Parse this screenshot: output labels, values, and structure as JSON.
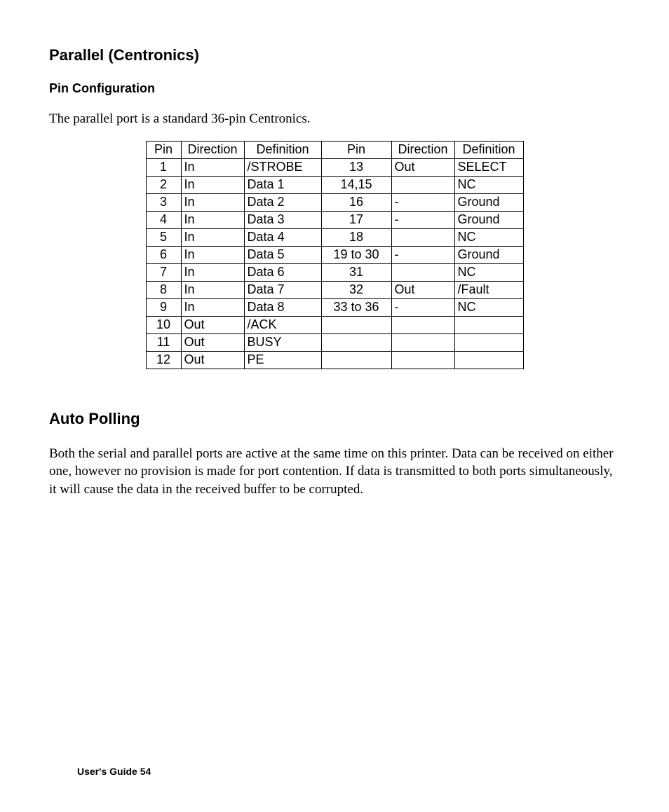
{
  "section1": {
    "heading": "Parallel (Centronics)",
    "subheading": "Pin Configuration",
    "intro": "The parallel port is a standard 36-pin Centronics."
  },
  "table": {
    "columns": [
      "Pin",
      "Direction",
      "Definition",
      "Pin",
      "Direction",
      "Definition"
    ],
    "col_classes": [
      "col-pin",
      "col-dir",
      "col-def",
      "col-pin2",
      "col-dir2",
      "col-def2"
    ],
    "rows": [
      [
        "1",
        "In",
        "/STROBE",
        "13",
        "Out",
        "SELECT"
      ],
      [
        "2",
        "In",
        "Data 1",
        "14,15",
        "",
        "NC"
      ],
      [
        "3",
        "In",
        "Data 2",
        "16",
        "-",
        "Ground"
      ],
      [
        "4",
        "In",
        "Data 3",
        "17",
        "-",
        "Ground"
      ],
      [
        "5",
        "In",
        "Data 4",
        "18",
        "",
        "NC"
      ],
      [
        "6",
        "In",
        "Data 5",
        "19 to 30",
        "-",
        "Ground"
      ],
      [
        "7",
        "In",
        "Data 6",
        "31",
        "",
        "NC"
      ],
      [
        "8",
        "In",
        "Data 7",
        "32",
        "Out",
        "/Fault"
      ],
      [
        "9",
        "In",
        "Data 8",
        "33 to 36",
        "-",
        "NC"
      ],
      [
        "10",
        "Out",
        "/ACK",
        "",
        "",
        ""
      ],
      [
        "11",
        "Out",
        "BUSY",
        "",
        "",
        ""
      ],
      [
        "12",
        "Out",
        "PE",
        "",
        "",
        ""
      ]
    ]
  },
  "section2": {
    "heading": "Auto Polling",
    "body": "Both the serial and parallel ports are active at the same time on this printer.  Data can be received on either one, however no provision is made for port contention.  If data is transmitted to both ports simultaneously, it will cause the data in the received buffer to be corrupted."
  },
  "footer": "User's Guide 54"
}
